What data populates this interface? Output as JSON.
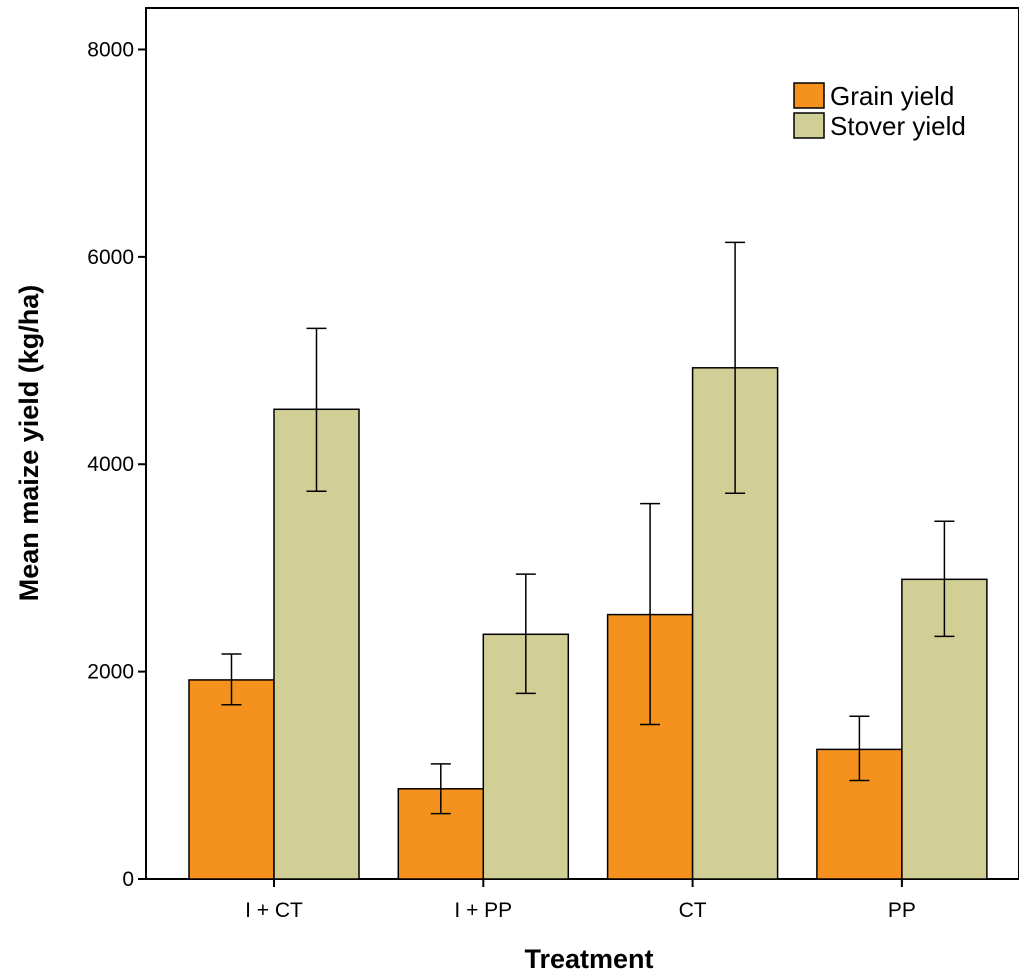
{
  "chart_data": {
    "type": "bar",
    "categories": [
      "I + CT",
      "I + PP",
      "CT",
      "PP"
    ],
    "series": [
      {
        "name": "Grain yield",
        "color": "#f5921e",
        "values": [
          1920,
          870,
          2550,
          1250
        ],
        "error_low": [
          1680,
          630,
          1490,
          950
        ],
        "error_high": [
          2170,
          1110,
          3620,
          1570
        ]
      },
      {
        "name": "Stover yield",
        "color": "#d2cf96",
        "values": [
          4530,
          2360,
          4930,
          2890
        ],
        "error_low": [
          3740,
          1790,
          3720,
          2340
        ],
        "error_high": [
          5310,
          2940,
          6140,
          3450
        ]
      }
    ],
    "xlabel": "Treatment",
    "ylabel": "Mean maize yield (kg/ha)",
    "ylim": [
      0,
      8400
    ],
    "yticks": [
      0,
      2000,
      4000,
      6000,
      8000
    ],
    "legend_position": "top-right",
    "grid": false
  }
}
